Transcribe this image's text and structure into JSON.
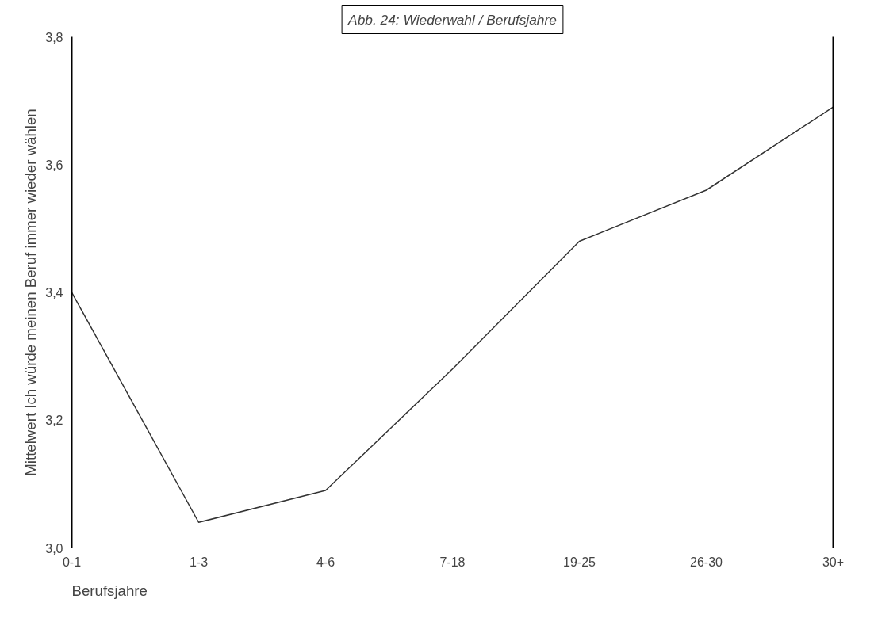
{
  "chart_data": {
    "type": "line",
    "title": "Abb. 24: Wiederwahl / Berufsjahre",
    "xlabel": "Berufsjahre",
    "ylabel": "Mittelwert Ich würde meinen Beruf immer wieder wählen",
    "categories": [
      "0-1",
      "1-3",
      "4-6",
      "7-18",
      "19-25",
      "26-30",
      "30+"
    ],
    "series": [
      {
        "color": "#333333",
        "values": [
          3.4,
          3.04,
          3.09,
          3.28,
          3.48,
          3.56,
          3.69
        ]
      }
    ],
    "ylim": [
      3.0,
      3.8
    ],
    "yticks": [
      {
        "value": 3.0,
        "label": "3,0"
      },
      {
        "value": 3.2,
        "label": "3,2"
      },
      {
        "value": 3.4,
        "label": "3,4"
      },
      {
        "value": 3.6,
        "label": "3,6"
      },
      {
        "value": 3.8,
        "label": "3,8"
      }
    ],
    "marker": "none",
    "line_style": "solid"
  }
}
